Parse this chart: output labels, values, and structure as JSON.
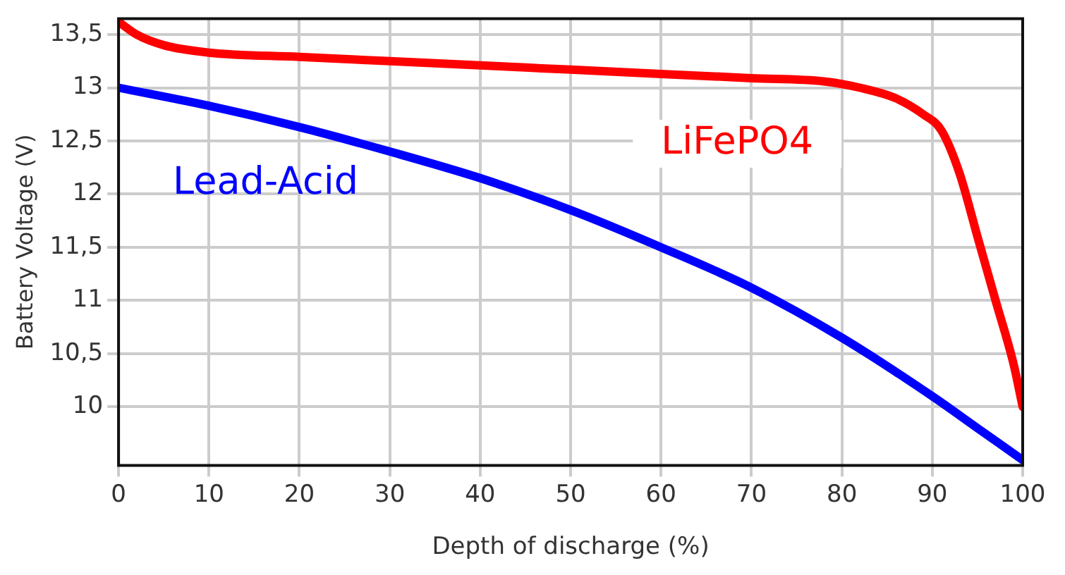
{
  "chart_data": {
    "type": "line",
    "xlabel": "Depth of discharge (%)",
    "ylabel": "Battery Voltage (V)",
    "xlim": [
      0,
      100
    ],
    "xticks": [
      0,
      10,
      20,
      30,
      40,
      50,
      60,
      70,
      80,
      90,
      100
    ],
    "ylim": [
      9.45,
      13.65
    ],
    "yticks": [
      {
        "value": 10,
        "label": "10"
      },
      {
        "value": 10.5,
        "label": "10,5"
      },
      {
        "value": 11,
        "label": "11"
      },
      {
        "value": 11.5,
        "label": "11,5"
      },
      {
        "value": 12,
        "label": "12"
      },
      {
        "value": 12.5,
        "label": "12,5"
      },
      {
        "value": 13,
        "label": "13"
      },
      {
        "value": 13.5,
        "label": "13,5"
      }
    ],
    "grid": true,
    "legend": false,
    "marker": "none",
    "line_style": "solid",
    "series": [
      {
        "name": "LiFePO4",
        "color": "#ff0000",
        "x": [
          0,
          2,
          5,
          10,
          20,
          30,
          40,
          50,
          60,
          70,
          78,
          82,
          86,
          89,
          91,
          93,
          95,
          97,
          99,
          100
        ],
        "values": [
          13.62,
          13.5,
          13.4,
          13.33,
          13.29,
          13.25,
          13.21,
          13.17,
          13.13,
          13.09,
          13.06,
          13.0,
          12.9,
          12.75,
          12.6,
          12.2,
          11.6,
          11.0,
          10.4,
          10.0
        ]
      },
      {
        "name": "Lead-Acid",
        "color": "#0000ff",
        "x": [
          0,
          10,
          20,
          30,
          40,
          50,
          60,
          70,
          80,
          90,
          95,
          100
        ],
        "values": [
          13.0,
          12.83,
          12.63,
          12.4,
          12.15,
          11.85,
          11.5,
          11.12,
          10.65,
          10.1,
          9.8,
          9.5
        ]
      }
    ]
  }
}
